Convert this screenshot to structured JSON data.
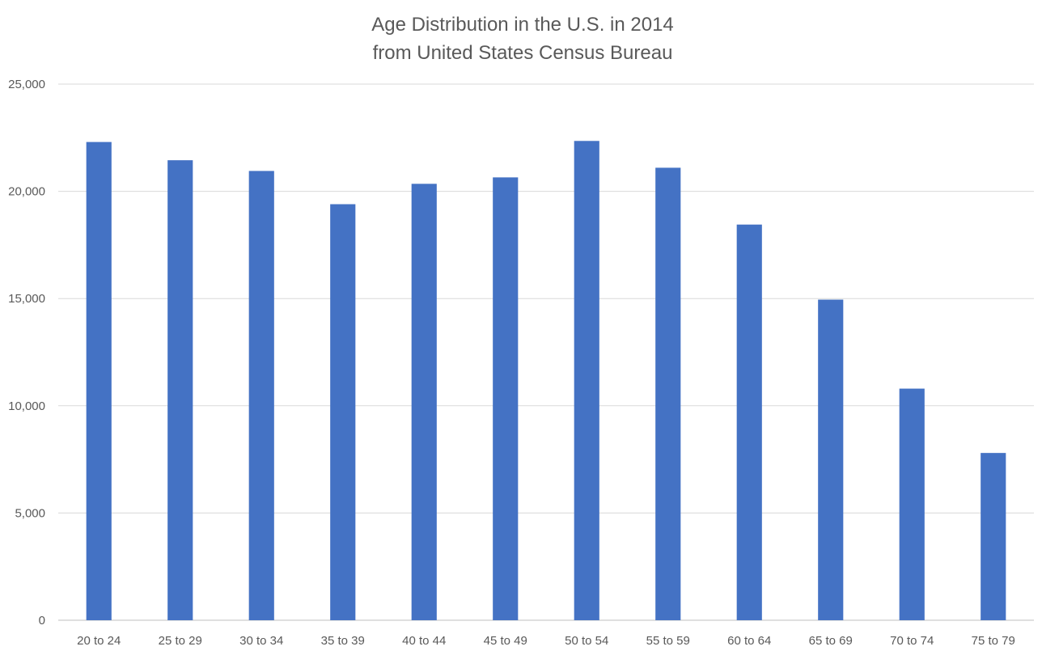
{
  "chart_data": {
    "type": "bar",
    "title_lines": [
      "Age Distribution in the U.S. in 2014",
      "from United States Census Bureau"
    ],
    "categories": [
      "20 to 24",
      "25 to 29",
      "30 to 34",
      "35 to 39",
      "40 to 44",
      "45 to 49",
      "50 to 54",
      "55 to 59",
      "60 to 64",
      "65 to 69",
      "70 to 74",
      "75 to 79"
    ],
    "values": [
      22300,
      21450,
      20950,
      19400,
      20350,
      20650,
      22350,
      21100,
      18450,
      14950,
      10800,
      7800
    ],
    "y_tick_labels": [
      "0",
      "5,000",
      "10,000",
      "15,000",
      "20,000",
      "25,000"
    ],
    "y_ticks": [
      0,
      5000,
      10000,
      15000,
      20000,
      25000
    ],
    "ylim": [
      0,
      25000
    ],
    "xlabel": "",
    "ylabel": "",
    "grid": true,
    "legend": "none",
    "bar_color": "#4472c4"
  }
}
